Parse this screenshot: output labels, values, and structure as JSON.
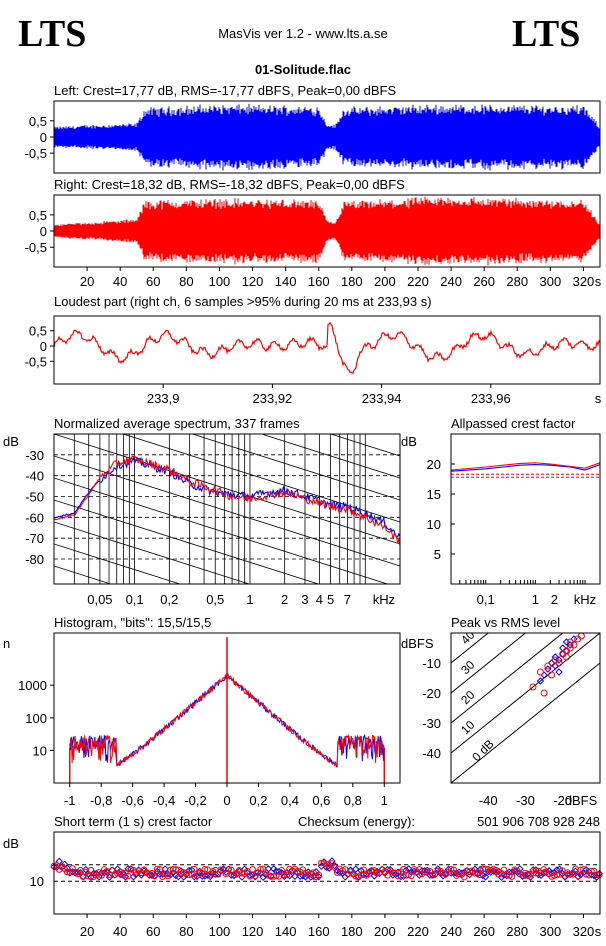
{
  "header": {
    "logo_left": "LTS",
    "logo_right": "LTS",
    "app": "MasVis ver 1.2 - www.lts.a.se",
    "file": "01-Solitude.flac"
  },
  "chart_data": [
    {
      "type": "line",
      "title": "Left: Crest=17,77 dB, RMS=-17,77 dBFS, Peak=0,00 dBFS",
      "series": [
        {
          "color": "#0000ff"
        }
      ],
      "ylim": [
        -1,
        1
      ],
      "y_ticks": [
        "0,5",
        "0",
        "-0,5"
      ],
      "envelope": [
        {
          "t": 0,
          "a": 0.3
        },
        {
          "t": 20,
          "a": 0.35
        },
        {
          "t": 50,
          "a": 0.4
        },
        {
          "t": 55,
          "a": 0.85
        },
        {
          "t": 100,
          "a": 0.95
        },
        {
          "t": 160,
          "a": 0.9
        },
        {
          "t": 165,
          "a": 0.4
        },
        {
          "t": 170,
          "a": 0.35
        },
        {
          "t": 175,
          "a": 0.85
        },
        {
          "t": 234,
          "a": 0.95
        },
        {
          "t": 320,
          "a": 0.92
        },
        {
          "t": 330,
          "a": 0.3
        }
      ]
    },
    {
      "type": "line",
      "title": "Right: Crest=18,32 dB, RMS=-18,32 dBFS, Peak=0,00 dBFS",
      "series": [
        {
          "color": "#ff0000"
        }
      ],
      "ylim": [
        -1,
        1
      ],
      "y_ticks": [
        "0,5",
        "0",
        "-0,5"
      ],
      "x_ticks": [
        "20",
        "40",
        "60",
        "80",
        "100",
        "120",
        "140",
        "160",
        "180",
        "200",
        "220",
        "240",
        "260",
        "280",
        "300",
        "320"
      ],
      "x_unit": "s",
      "envelope": [
        {
          "t": 0,
          "a": 0.2
        },
        {
          "t": 20,
          "a": 0.25
        },
        {
          "t": 50,
          "a": 0.35
        },
        {
          "t": 55,
          "a": 0.9
        },
        {
          "t": 100,
          "a": 0.95
        },
        {
          "t": 160,
          "a": 0.9
        },
        {
          "t": 165,
          "a": 0.3
        },
        {
          "t": 170,
          "a": 0.25
        },
        {
          "t": 175,
          "a": 0.85
        },
        {
          "t": 234,
          "a": 1.0
        },
        {
          "t": 320,
          "a": 0.92
        },
        {
          "t": 330,
          "a": 0.2
        }
      ]
    },
    {
      "type": "line",
      "title": "Loudest part (right ch, 6 samples >95% during 20 ms at 233,93 s)",
      "series": [
        {
          "color": "#ff0000"
        }
      ],
      "xlim": [
        233.88,
        233.98
      ],
      "x_ticks": [
        "233,9",
        "233,92",
        "233,94",
        "233,96"
      ],
      "x_tick_values": [
        233.9,
        233.92,
        233.94,
        233.96
      ],
      "x_unit": "s",
      "y_ticks": [
        "0,5",
        "0",
        "-0,5"
      ],
      "ylim": [
        -1,
        1
      ]
    },
    {
      "type": "line",
      "title": "Normalized average spectrum, 337 frames",
      "ylabel": "dB",
      "y_ticks": [
        "-30",
        "-40",
        "-50",
        "-60",
        "-70",
        "-80"
      ],
      "y_tick_values": [
        -30,
        -40,
        -50,
        -60,
        -70,
        -80
      ],
      "ylim": [
        -92,
        -20
      ],
      "x_ticks": [
        "0,05",
        "0,1",
        "0,2",
        "0,5",
        "1",
        "2",
        "3",
        "4",
        "5",
        "7"
      ],
      "x_tick_values": [
        0.05,
        0.1,
        0.2,
        0.5,
        1,
        2,
        3,
        4,
        5,
        7
      ],
      "x_unit": "kHz",
      "xlim": [
        0.02,
        20
      ],
      "x_scale": "log",
      "series": [
        {
          "color": "#0000ff",
          "x": [
            0.02,
            0.03,
            0.04,
            0.05,
            0.07,
            0.1,
            0.15,
            0.2,
            0.3,
            0.5,
            0.7,
            1,
            1.5,
            2,
            3,
            4,
            5,
            7,
            10,
            15,
            20
          ],
          "y": [
            -60,
            -58,
            -48,
            -42,
            -35,
            -33,
            -36,
            -38,
            -44,
            -48,
            -49,
            -50,
            -48,
            -47,
            -50,
            -52,
            -54,
            -55,
            -58,
            -63,
            -70
          ]
        },
        {
          "color": "#ff0000",
          "x": [
            0.02,
            0.03,
            0.04,
            0.05,
            0.07,
            0.1,
            0.15,
            0.2,
            0.3,
            0.5,
            0.7,
            1,
            1.5,
            2,
            3,
            4,
            5,
            7,
            10,
            15,
            20
          ],
          "y": [
            -61,
            -59,
            -49,
            -41,
            -34,
            -32,
            -35,
            -37,
            -43,
            -47,
            -50,
            -51,
            -49,
            -48,
            -51,
            -53,
            -55,
            -56,
            -60,
            -65,
            -72
          ]
        }
      ]
    },
    {
      "type": "line",
      "title": "Allpassed crest factor",
      "ylabel": "dB",
      "y_ticks": [
        "20",
        "15",
        "10",
        "5"
      ],
      "y_tick_values": [
        20,
        15,
        10,
        5
      ],
      "ylim": [
        0,
        25
      ],
      "x_ticks": [
        "0,1",
        "1",
        "2",
        "kHz"
      ],
      "x_tick_values": [
        0.1,
        1,
        2
      ],
      "x_scale": "log",
      "xlim": [
        0.02,
        20
      ],
      "series": [
        {
          "color": "#0000ff",
          "x": [
            0.02,
            0.1,
            0.5,
            1,
            2,
            5,
            10,
            20
          ],
          "y": [
            18.8,
            19.2,
            19.8,
            19.9,
            19.8,
            19.5,
            19.0,
            19.9
          ]
        },
        {
          "color": "#ff0000",
          "x": [
            0.02,
            0.1,
            0.5,
            1,
            2,
            5,
            10,
            20
          ],
          "y": [
            19.0,
            19.5,
            20.1,
            20.2,
            20.0,
            19.6,
            19.3,
            20.2
          ]
        }
      ],
      "reference_lines": [
        18.3,
        17.8
      ]
    },
    {
      "type": "line",
      "title": "Histogram, \"bits\": 15,5/15,5",
      "ylabel": "n",
      "y_scale": "log",
      "y_ticks": [
        "1000",
        "100",
        "10"
      ],
      "y_tick_values": [
        1000,
        100,
        10
      ],
      "x_ticks": [
        "-1",
        "-0,8",
        "-0,6",
        "-0,4",
        "-0,2",
        "0",
        "0,2",
        "0,4",
        "0,6",
        "0,8",
        "1"
      ],
      "x_tick_values": [
        -1,
        -0.8,
        -0.6,
        -0.4,
        -0.2,
        0,
        0.2,
        0.4,
        0.6,
        0.8,
        1
      ],
      "xlim": [
        -1.1,
        1.1
      ]
    },
    {
      "type": "scatter",
      "title": "Peak vs RMS level",
      "ylabel": "dBFS",
      "xlabel": "dBFS",
      "y_ticks": [
        "-10",
        "-20",
        "-30",
        "-40"
      ],
      "y_tick_values": [
        -10,
        -20,
        -30,
        -40
      ],
      "x_ticks": [
        "-40",
        "-30",
        "-20"
      ],
      "x_tick_values": [
        -40,
        -30,
        -20
      ],
      "xlim": [
        -50,
        -10
      ],
      "ylim": [
        -50,
        0
      ],
      "diag_labels": [
        "40",
        "30",
        "20",
        "10",
        "0 dB"
      ],
      "series": [
        {
          "color": "#0000ff",
          "x": [
            -22,
            -21,
            -20,
            -19,
            -23,
            -24,
            -25,
            -22,
            -20,
            -18,
            -21,
            -26,
            -19,
            -17
          ],
          "y": [
            -8,
            -9,
            -7,
            -6,
            -10,
            -12,
            -14,
            -11,
            -5,
            -4,
            -13,
            -16,
            -3,
            -2
          ]
        },
        {
          "color": "#ff0000",
          "x": [
            -20,
            -19,
            -18,
            -17,
            -22,
            -24,
            -26,
            -21,
            -18,
            -16,
            -23,
            -28,
            -19,
            -15,
            -25
          ],
          "y": [
            -7,
            -6,
            -5,
            -4,
            -9,
            -11,
            -13,
            -10,
            -3,
            -2,
            -14,
            -18,
            -8,
            -1,
            -20
          ]
        }
      ]
    },
    {
      "type": "scatter",
      "title": "Short term (1 s) crest factor",
      "checksum_label": "Checksum (energy):",
      "checksum_value": "501 906 708 928 248",
      "ylabel": "dB",
      "y_ticks": [
        "10"
      ],
      "y_tick_values": [
        10
      ],
      "ylim": [
        0,
        25
      ],
      "x_ticks": [
        "20",
        "40",
        "60",
        "80",
        "100",
        "120",
        "140",
        "160",
        "180",
        "200",
        "220",
        "240",
        "260",
        "280",
        "300",
        "320"
      ],
      "x_unit": "s",
      "reference_lines": [
        15,
        10
      ]
    }
  ]
}
